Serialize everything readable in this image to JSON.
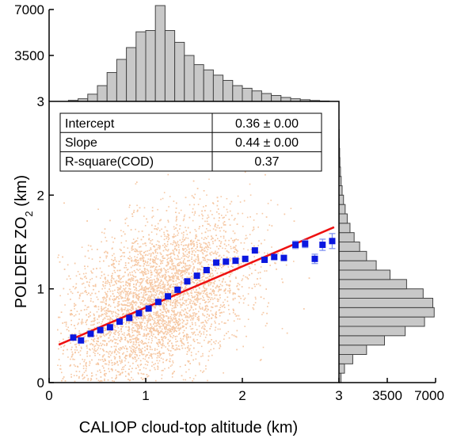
{
  "chart_data": {
    "type": "scatter",
    "xlabel": "CALIOP cloud-top altitude (km)",
    "ylabel_main": "POLDER ZO",
    "ylabel_sub": "2",
    "ylabel_tail": " (km)",
    "xlim": [
      0,
      3
    ],
    "ylim": [
      0,
      3
    ],
    "x_ticks": [
      {
        "value": 0,
        "label": "0"
      },
      {
        "value": 1,
        "label": "1"
      },
      {
        "value": 2,
        "label": "2"
      },
      {
        "value": 3,
        "label": "3"
      }
    ],
    "y_ticks": [
      {
        "value": 0,
        "label": "0"
      },
      {
        "value": 1,
        "label": "1"
      },
      {
        "value": 2,
        "label": "2"
      },
      {
        "value": 3,
        "label": "3"
      }
    ],
    "top_hist_ticks": [
      {
        "value": 3500,
        "label": "3500"
      },
      {
        "value": 7000,
        "label": "7000"
      }
    ],
    "right_hist_ticks": [
      {
        "value": 3500,
        "label": "3500"
      },
      {
        "value": 7000,
        "label": "7000"
      }
    ],
    "fit_line": {
      "intercept": 0.36,
      "slope": 0.44,
      "x_range": [
        0.1,
        2.95
      ],
      "color": "#ee1111"
    },
    "binned_means": [
      {
        "x": 0.25,
        "y": 0.48,
        "err": 0.0
      },
      {
        "x": 0.33,
        "y": 0.45,
        "err": 0.0
      },
      {
        "x": 0.43,
        "y": 0.52,
        "err": 0.0
      },
      {
        "x": 0.53,
        "y": 0.56,
        "err": 0.0
      },
      {
        "x": 0.63,
        "y": 0.59,
        "err": 0.0
      },
      {
        "x": 0.73,
        "y": 0.65,
        "err": 0.0
      },
      {
        "x": 0.83,
        "y": 0.69,
        "err": 0.0
      },
      {
        "x": 0.93,
        "y": 0.74,
        "err": 0.0
      },
      {
        "x": 1.03,
        "y": 0.79,
        "err": 0.0
      },
      {
        "x": 1.13,
        "y": 0.86,
        "err": 0.0
      },
      {
        "x": 1.23,
        "y": 0.92,
        "err": 0.0
      },
      {
        "x": 1.33,
        "y": 0.99,
        "err": 0.0
      },
      {
        "x": 1.43,
        "y": 1.08,
        "err": 0.0
      },
      {
        "x": 1.53,
        "y": 1.14,
        "err": 0.0
      },
      {
        "x": 1.63,
        "y": 1.2,
        "err": 0.0
      },
      {
        "x": 1.73,
        "y": 1.28,
        "err": 0.0
      },
      {
        "x": 1.83,
        "y": 1.29,
        "err": 0.0
      },
      {
        "x": 1.93,
        "y": 1.3,
        "err": 0.0
      },
      {
        "x": 2.03,
        "y": 1.32,
        "err": 0.0
      },
      {
        "x": 2.13,
        "y": 1.41,
        "err": 0.0
      },
      {
        "x": 2.23,
        "y": 1.31,
        "err": 0.02
      },
      {
        "x": 2.33,
        "y": 1.34,
        "err": 0.02
      },
      {
        "x": 2.43,
        "y": 1.33,
        "err": 0.02
      },
      {
        "x": 2.55,
        "y": 1.47,
        "err": 0.04
      },
      {
        "x": 2.65,
        "y": 1.48,
        "err": 0.04
      },
      {
        "x": 2.75,
        "y": 1.32,
        "err": 0.05
      },
      {
        "x": 2.83,
        "y": 1.47,
        "err": 0.06
      },
      {
        "x": 2.93,
        "y": 1.51,
        "err": 0.08
      }
    ],
    "top_histogram": {
      "bin_width": 0.1,
      "bin_starts": [
        0.2,
        0.3,
        0.4,
        0.5,
        0.6,
        0.7,
        0.8,
        0.9,
        1.0,
        1.1,
        1.2,
        1.3,
        1.4,
        1.5,
        1.6,
        1.7,
        1.8,
        1.9,
        2.0,
        2.1,
        2.2,
        2.3,
        2.4,
        2.5,
        2.6,
        2.7,
        2.8
      ],
      "counts": [
        80,
        200,
        550,
        1200,
        2200,
        3200,
        4100,
        5300,
        5400,
        7300,
        5400,
        4500,
        3500,
        2800,
        2400,
        2000,
        1600,
        1200,
        1000,
        800,
        600,
        450,
        300,
        200,
        130,
        70,
        30
      ]
    },
    "right_histogram": {
      "bin_height": 0.1,
      "bin_starts": [
        0.0,
        0.1,
        0.2,
        0.3,
        0.4,
        0.5,
        0.6,
        0.7,
        0.8,
        0.9,
        1.0,
        1.1,
        1.2,
        1.3,
        1.4,
        1.5,
        1.6,
        1.7,
        1.8,
        1.9,
        2.0,
        2.1,
        2.2,
        2.3,
        2.4,
        2.5,
        2.6,
        2.7
      ],
      "counts": [
        150,
        400,
        1000,
        2000,
        3300,
        4800,
        6200,
        6900,
        6800,
        6100,
        4900,
        3700,
        2700,
        2000,
        1500,
        1100,
        800,
        600,
        450,
        330,
        230,
        160,
        110,
        70,
        50,
        30,
        20,
        10
      ]
    },
    "scatter_cloud": {
      "color": "#f6c8a4",
      "approx_points": 6000
    },
    "stats_table": {
      "rows": [
        {
          "label": "Intercept",
          "value": "0.36 ± 0.00"
        },
        {
          "label": "Slope",
          "value": "0.44 ± 0.00"
        },
        {
          "label": "R-square(COD)",
          "value": "0.37"
        }
      ]
    },
    "colors": {
      "means": "#0b18e0",
      "error_bars": "#7a8ef0",
      "hist_fill": "#c8c8c8",
      "hist_stroke": "#444444"
    }
  }
}
